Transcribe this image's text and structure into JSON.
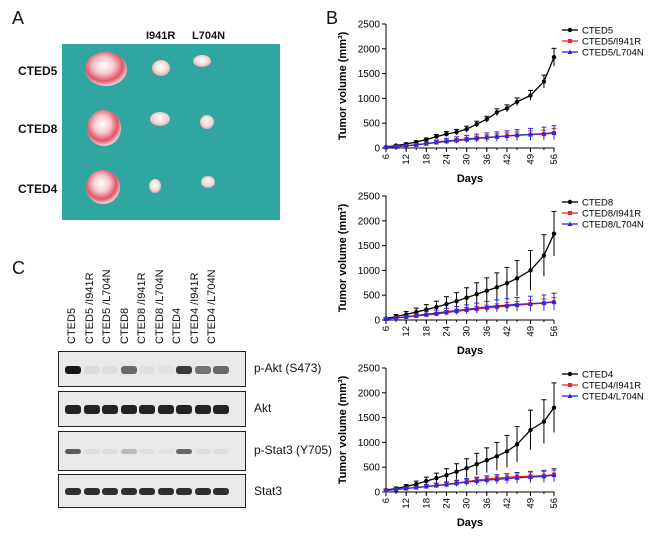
{
  "panels": {
    "a": "A",
    "b": "B",
    "c": "C"
  },
  "photo": {
    "col_labels": [
      "I941R",
      "L704N"
    ],
    "row_labels": [
      "CTED5",
      "CTED8",
      "CTED4"
    ]
  },
  "blot": {
    "lanes": [
      "CTED5",
      "CTED5 /I941R",
      "CTED5 /L704N",
      "CTED8",
      "CTED8 /I941R",
      "CTED8 /L704N",
      "CTED4",
      "CTED4 /I941R",
      "CTED4 /L704N"
    ],
    "rows": [
      "p-Akt (S473)",
      "Akt",
      "p-Stat3 (Y705)",
      "Stat3"
    ]
  },
  "chart_data": [
    {
      "type": "line",
      "xlabel": "Days",
      "ylabel": "Tumor volume (mm³)",
      "x": [
        6,
        9,
        12,
        15,
        18,
        21,
        24,
        27,
        30,
        33,
        36,
        39,
        42,
        45,
        49,
        53,
        56
      ],
      "xticks": [
        6,
        12,
        18,
        24,
        30,
        36,
        42,
        49,
        56
      ],
      "yticks": [
        0,
        500,
        1000,
        1500,
        2000,
        2500
      ],
      "ylim": [
        0,
        2500
      ],
      "legend": "top-right",
      "series": [
        {
          "name": "CTED5",
          "color": "#000000",
          "values": [
            20,
            50,
            80,
            120,
            170,
            230,
            280,
            320,
            380,
            480,
            580,
            720,
            800,
            930,
            1060,
            1340,
            1830
          ],
          "err": [
            10,
            15,
            20,
            25,
            30,
            40,
            50,
            55,
            60,
            60,
            60,
            70,
            70,
            80,
            100,
            130,
            180
          ]
        },
        {
          "name": "CTED5/I941R",
          "color": "#e8262a",
          "values": [
            15,
            25,
            40,
            60,
            85,
            110,
            130,
            150,
            170,
            190,
            210,
            225,
            240,
            255,
            270,
            280,
            300
          ],
          "err": [
            8,
            10,
            15,
            20,
            25,
            30,
            35,
            40,
            45,
            50,
            55,
            60,
            65,
            70,
            75,
            80,
            90
          ]
        },
        {
          "name": "CTED5/L704N",
          "color": "#2a2ad8",
          "values": [
            15,
            25,
            45,
            65,
            90,
            115,
            140,
            160,
            180,
            200,
            215,
            230,
            245,
            260,
            275,
            290,
            310
          ],
          "err": [
            8,
            12,
            18,
            25,
            35,
            45,
            55,
            65,
            75,
            80,
            90,
            95,
            100,
            110,
            120,
            130,
            140
          ]
        }
      ]
    },
    {
      "type": "line",
      "xlabel": "Days",
      "ylabel": "Tumor volume (mm³)",
      "x": [
        6,
        9,
        12,
        15,
        18,
        21,
        24,
        27,
        30,
        33,
        36,
        39,
        42,
        45,
        49,
        53,
        56
      ],
      "xticks": [
        6,
        12,
        18,
        24,
        30,
        36,
        42,
        49,
        56
      ],
      "yticks": [
        0,
        500,
        1000,
        1500,
        2000,
        2500
      ],
      "ylim": [
        0,
        2500
      ],
      "legend": "top-right",
      "series": [
        {
          "name": "CTED8",
          "color": "#000000",
          "values": [
            30,
            70,
            110,
            160,
            210,
            260,
            320,
            380,
            450,
            520,
            590,
            660,
            740,
            840,
            1000,
            1300,
            1740
          ],
          "err": [
            20,
            40,
            60,
            80,
            100,
            120,
            150,
            170,
            200,
            230,
            260,
            290,
            320,
            360,
            400,
            420,
            450
          ]
        },
        {
          "name": "CTED8/I941R",
          "color": "#e8262a",
          "values": [
            20,
            40,
            60,
            80,
            100,
            120,
            150,
            175,
            200,
            220,
            240,
            260,
            280,
            300,
            320,
            340,
            360
          ],
          "err": [
            10,
            15,
            20,
            25,
            30,
            35,
            40,
            45,
            50,
            55,
            60,
            65,
            70,
            75,
            80,
            85,
            90
          ]
        },
        {
          "name": "CTED8/L704N",
          "color": "#2a2ad8",
          "values": [
            20,
            40,
            65,
            90,
            115,
            140,
            165,
            190,
            215,
            240,
            265,
            285,
            300,
            315,
            330,
            345,
            370
          ],
          "err": [
            10,
            20,
            30,
            40,
            50,
            60,
            70,
            80,
            90,
            100,
            110,
            120,
            130,
            140,
            150,
            160,
            170
          ]
        }
      ]
    },
    {
      "type": "line",
      "xlabel": "Days",
      "ylabel": "Tumor volume (mm³)",
      "x": [
        6,
        9,
        12,
        15,
        18,
        21,
        24,
        27,
        30,
        33,
        36,
        39,
        42,
        45,
        49,
        53,
        56
      ],
      "xticks": [
        6,
        12,
        18,
        24,
        30,
        36,
        42,
        49,
        56
      ],
      "yticks": [
        0,
        500,
        1000,
        1500,
        2000,
        2500
      ],
      "ylim": [
        0,
        2500
      ],
      "legend": "top-right",
      "series": [
        {
          "name": "CTED4",
          "color": "#000000",
          "values": [
            40,
            70,
            110,
            160,
            220,
            280,
            340,
            410,
            480,
            560,
            640,
            720,
            820,
            960,
            1250,
            1420,
            1700
          ],
          "err": [
            20,
            30,
            40,
            60,
            80,
            100,
            130,
            160,
            190,
            220,
            250,
            280,
            320,
            360,
            400,
            440,
            500
          ]
        },
        {
          "name": "CTED4/I941R",
          "color": "#e8262a",
          "values": [
            30,
            50,
            70,
            90,
            110,
            130,
            150,
            180,
            210,
            240,
            260,
            280,
            295,
            310,
            320,
            330,
            350
          ],
          "err": [
            10,
            15,
            20,
            25,
            30,
            35,
            40,
            45,
            50,
            55,
            60,
            65,
            70,
            75,
            80,
            85,
            90
          ]
        },
        {
          "name": "CTED4/L704N",
          "color": "#2a2ad8",
          "values": [
            30,
            50,
            70,
            90,
            110,
            130,
            150,
            175,
            200,
            220,
            240,
            255,
            270,
            285,
            300,
            315,
            340
          ],
          "err": [
            10,
            18,
            25,
            32,
            40,
            48,
            55,
            62,
            70,
            78,
            85,
            92,
            100,
            108,
            115,
            122,
            130
          ]
        }
      ]
    }
  ]
}
